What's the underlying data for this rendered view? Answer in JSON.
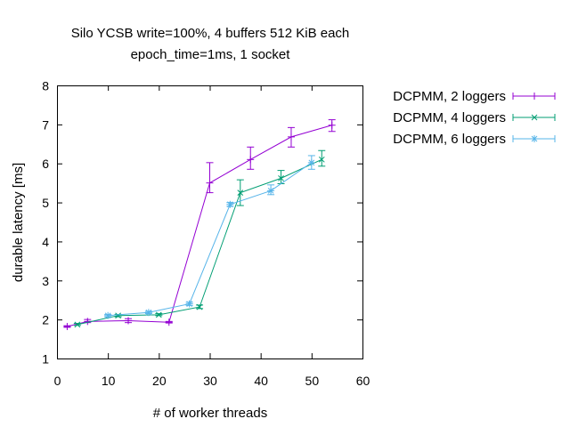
{
  "chart_data": {
    "type": "line",
    "title": "Silo YCSB write=100%, 4 buffers 512 KiB each",
    "subtitle": "epoch_time=1ms, 1 socket",
    "xlabel": "# of worker threads",
    "ylabel": "durable latency [ms]",
    "xlim": [
      0,
      60
    ],
    "ylim": [
      1,
      8
    ],
    "xticks": [
      0,
      10,
      20,
      30,
      40,
      50,
      60
    ],
    "yticks": [
      1,
      2,
      3,
      4,
      5,
      6,
      7,
      8
    ],
    "legend_position": "outside-top-right",
    "grid": false,
    "series": [
      {
        "name": "DCPMM, 2 loggers",
        "color": "#9400d3",
        "marker": "plus",
        "points": [
          {
            "x": 2,
            "y": 1.82,
            "lo": 1.8,
            "hi": 1.84
          },
          {
            "x": 6,
            "y": 1.95,
            "lo": 1.92,
            "hi": 2.0
          },
          {
            "x": 14,
            "y": 1.97,
            "lo": 1.92,
            "hi": 2.02
          },
          {
            "x": 22,
            "y": 1.93,
            "lo": 1.91,
            "hi": 1.95
          },
          {
            "x": 30,
            "y": 5.5,
            "lo": 5.25,
            "hi": 6.02
          },
          {
            "x": 38,
            "y": 6.1,
            "lo": 5.85,
            "hi": 6.42
          },
          {
            "x": 46,
            "y": 6.68,
            "lo": 6.42,
            "hi": 6.92
          },
          {
            "x": 54,
            "y": 6.98,
            "lo": 6.82,
            "hi": 7.12
          }
        ]
      },
      {
        "name": "DCPMM, 4 loggers",
        "color": "#009e73",
        "marker": "cross",
        "points": [
          {
            "x": 4,
            "y": 1.87,
            "lo": 1.85,
            "hi": 1.9
          },
          {
            "x": 12,
            "y": 2.1,
            "lo": 2.07,
            "hi": 2.13
          },
          {
            "x": 20,
            "y": 2.12,
            "lo": 2.1,
            "hi": 2.15
          },
          {
            "x": 28,
            "y": 2.32,
            "lo": 2.28,
            "hi": 2.37
          },
          {
            "x": 36,
            "y": 5.25,
            "lo": 4.92,
            "hi": 5.58
          },
          {
            "x": 44,
            "y": 5.62,
            "lo": 5.48,
            "hi": 5.82
          },
          {
            "x": 52,
            "y": 6.1,
            "lo": 5.93,
            "hi": 6.33
          }
        ]
      },
      {
        "name": "DCPMM, 6 loggers",
        "color": "#56b4e9",
        "marker": "star",
        "points": [
          {
            "x": 10,
            "y": 2.1,
            "lo": 2.07,
            "hi": 2.13
          },
          {
            "x": 18,
            "y": 2.18,
            "lo": 2.15,
            "hi": 2.21
          },
          {
            "x": 26,
            "y": 2.4,
            "lo": 2.36,
            "hi": 2.44
          },
          {
            "x": 34,
            "y": 4.95,
            "lo": 4.9,
            "hi": 5.0
          },
          {
            "x": 42,
            "y": 5.3,
            "lo": 5.2,
            "hi": 5.45
          },
          {
            "x": 50,
            "y": 6.02,
            "lo": 5.85,
            "hi": 6.2
          }
        ]
      }
    ]
  }
}
